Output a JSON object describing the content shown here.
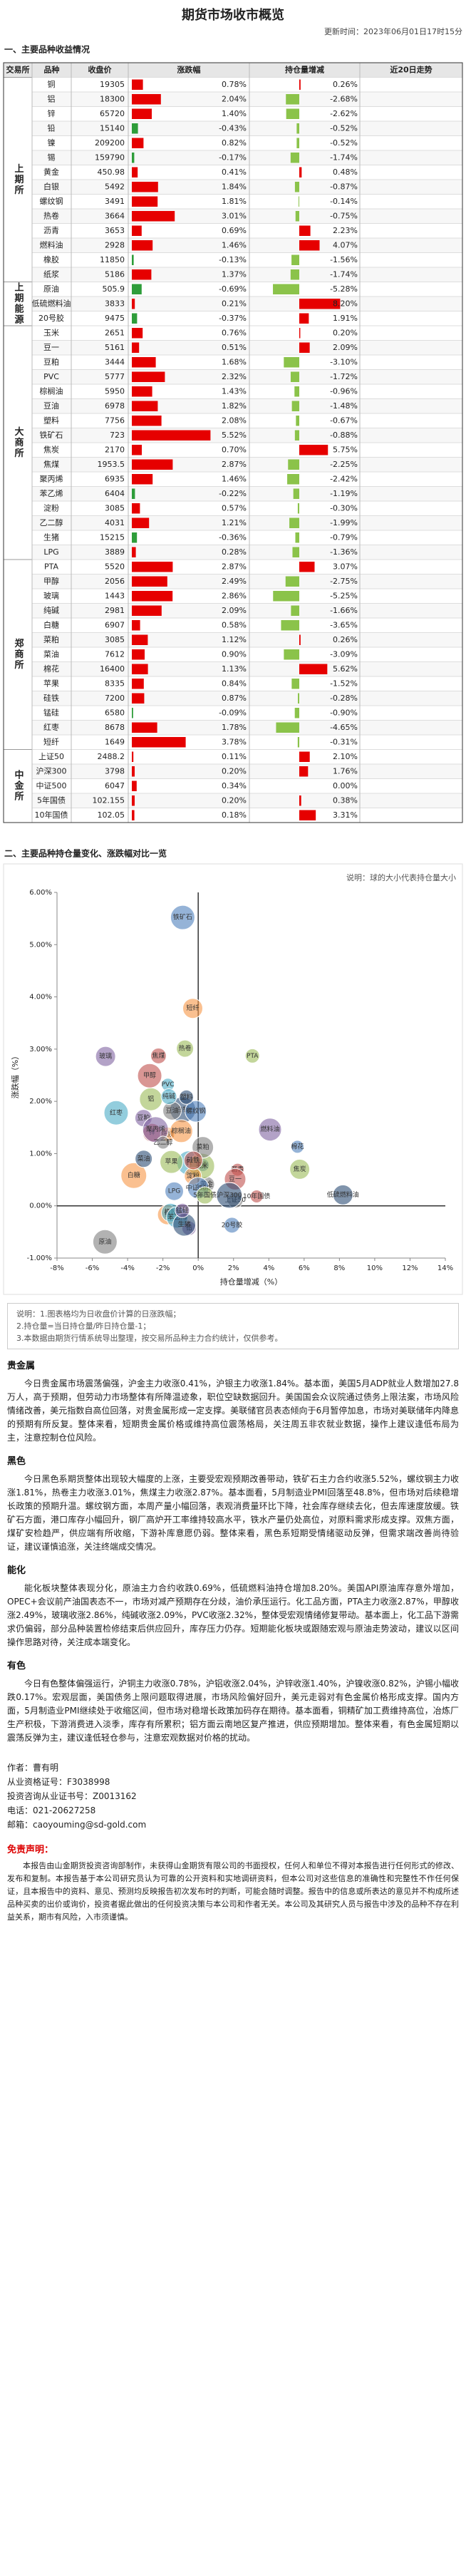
{
  "header": {
    "title": "期货市场收市概览",
    "updated": "更新时间：2023年06月01日17时15分"
  },
  "section1_title": "一、主要品种收益情况",
  "table": {
    "headers": [
      "交易所",
      "品种",
      "收盘价",
      "涨跌幅",
      "持仓量增减",
      "近20日走势"
    ],
    "groups": [
      {
        "exchange": "上期所",
        "rows": [
          [
            "铜",
            19305,
            0.78,
            "0.78%",
            0.26,
            "0.26%"
          ],
          [
            "铝",
            18300,
            2.04,
            "2.04%",
            -2.68,
            "-2.68%"
          ],
          [
            "锌",
            65720,
            1.4,
            "1.40%",
            -2.62,
            "-2.62%"
          ],
          [
            "铅",
            15140,
            -0.43,
            "-0.43%",
            -0.52,
            "-0.52%"
          ],
          [
            "镍",
            209200,
            0.82,
            "0.82%",
            -0.52,
            "-0.52%"
          ],
          [
            "锡",
            159790,
            -0.17,
            "-0.17%",
            -1.74,
            "-1.74%"
          ],
          [
            "黄金",
            450.98,
            0.41,
            "0.41%",
            0.48,
            "0.48%"
          ],
          [
            "白银",
            5492,
            1.84,
            "1.84%",
            -0.87,
            "-0.87%"
          ],
          [
            "螺纹钢",
            3491,
            1.81,
            "1.81%",
            -0.14,
            "-0.14%"
          ],
          [
            "热卷",
            3664,
            3.01,
            "3.01%",
            -0.75,
            "-0.75%"
          ],
          [
            "沥青",
            3653,
            0.69,
            "0.69%",
            2.23,
            "2.23%"
          ],
          [
            "燃料油",
            2928,
            1.46,
            "1.46%",
            4.07,
            "4.07%"
          ],
          [
            "橡胶",
            11850,
            -0.13,
            "-0.13%",
            -1.56,
            "-1.56%"
          ],
          [
            "纸浆",
            5186,
            1.37,
            "1.37%",
            -1.74,
            "-1.74%"
          ]
        ]
      },
      {
        "exchange": "上期能源",
        "rows": [
          [
            "原油",
            505.9,
            -0.69,
            "-0.69%",
            -5.28,
            "-5.28%"
          ],
          [
            "低硫燃料油",
            3833,
            0.21,
            "0.21%",
            8.2,
            "8.20%"
          ],
          [
            "20号胶",
            9475,
            -0.37,
            "-0.37%",
            1.91,
            "1.91%"
          ]
        ]
      },
      {
        "exchange": "大商所",
        "rows": [
          [
            "玉米",
            2651,
            0.76,
            "0.76%",
            0.2,
            "0.20%"
          ],
          [
            "豆一",
            5161,
            0.51,
            "0.51%",
            2.09,
            "2.09%"
          ],
          [
            "豆粕",
            3444,
            1.68,
            "1.68%",
            -3.1,
            "-3.10%"
          ],
          [
            "PVC",
            5777,
            2.32,
            "2.32%",
            -1.72,
            "-1.72%"
          ],
          [
            "棕榈油",
            5950,
            1.43,
            "1.43%",
            -0.96,
            "-0.96%"
          ],
          [
            "豆油",
            6978,
            1.82,
            "1.82%",
            -1.48,
            "-1.48%"
          ],
          [
            "塑料",
            7756,
            2.08,
            "2.08%",
            -0.67,
            "-0.67%"
          ],
          [
            "铁矿石",
            723,
            5.52,
            "5.52%",
            -0.88,
            "-0.88%"
          ],
          [
            "焦炭",
            2170,
            0.7,
            "0.70%",
            5.75,
            "5.75%"
          ],
          [
            "焦煤",
            1953.5,
            2.87,
            "2.87%",
            -2.25,
            "-2.25%"
          ],
          [
            "聚丙烯",
            6935,
            1.46,
            "1.46%",
            -2.42,
            "-2.42%"
          ],
          [
            "苯乙烯",
            6404,
            -0.22,
            "-0.22%",
            -1.19,
            "-1.19%"
          ],
          [
            "淀粉",
            3085,
            0.57,
            "0.57%",
            -0.3,
            "-0.30%"
          ],
          [
            "乙二醇",
            4031,
            1.21,
            "1.21%",
            -1.99,
            "-1.99%"
          ],
          [
            "生猪",
            15215,
            -0.36,
            "-0.36%",
            -0.79,
            "-0.79%"
          ],
          [
            "LPG",
            3889,
            0.28,
            "0.28%",
            -1.36,
            "-1.36%"
          ]
        ]
      },
      {
        "exchange": "郑商所",
        "rows": [
          [
            "PTA",
            5520,
            2.87,
            "2.87%",
            3.07,
            "3.07%"
          ],
          [
            "甲醇",
            2056,
            2.49,
            "2.49%",
            -2.75,
            "-2.75%"
          ],
          [
            "玻璃",
            1443,
            2.86,
            "2.86%",
            -5.25,
            "-5.25%"
          ],
          [
            "纯碱",
            2981,
            2.09,
            "2.09%",
            -1.66,
            "-1.66%"
          ],
          [
            "白糖",
            6907,
            0.58,
            "0.58%",
            -3.65,
            "-3.65%"
          ],
          [
            "菜粕",
            3085,
            1.12,
            "1.12%",
            0.26,
            "0.26%"
          ],
          [
            "菜油",
            7612,
            0.9,
            "0.90%",
            -3.09,
            "-3.09%"
          ],
          [
            "棉花",
            16400,
            1.13,
            "1.13%",
            5.62,
            "5.62%"
          ],
          [
            "苹果",
            8335,
            0.84,
            "0.84%",
            -1.52,
            "-1.52%"
          ],
          [
            "硅铁",
            7200,
            0.87,
            "0.87%",
            -0.28,
            "-0.28%"
          ],
          [
            "锰硅",
            6580,
            -0.09,
            "-0.09%",
            -0.9,
            "-0.90%"
          ],
          [
            "红枣",
            8678,
            1.78,
            "1.78%",
            -4.65,
            "-4.65%"
          ],
          [
            "短纤",
            1649,
            3.78,
            "3.78%",
            -0.31,
            "-0.31%"
          ]
        ]
      },
      {
        "exchange": "中金所",
        "rows": [
          [
            "上证50",
            2488.2,
            0.11,
            "0.11%",
            2.1,
            "2.10%"
          ],
          [
            "沪深300",
            3798,
            0.2,
            "0.20%",
            1.76,
            "1.76%"
          ],
          [
            "中证500",
            6047,
            0.34,
            "0.34%",
            0,
            "0.00%"
          ],
          [
            "5年国债",
            102.155,
            0.2,
            "0.20%",
            0.38,
            "0.38%"
          ],
          [
            "10年国债",
            102.05,
            0.18,
            "0.18%",
            3.31,
            "3.31%"
          ]
        ]
      }
    ]
  },
  "chart_data": {
    "type": "scatter",
    "title": "二、主要品种持仓量变化、涨跌幅对比一览",
    "note": "说明：球的大小代表持仓量大小",
    "x_label": "持仓量增减（%）",
    "y_label": "涨跌幅（%）",
    "xlim": [
      -8,
      14
    ],
    "xticks": [
      {
        "value": -8,
        "label": "-8%"
      },
      {
        "value": -6,
        "label": "-6%"
      },
      {
        "value": -4,
        "label": "-4%"
      },
      {
        "value": -2,
        "label": "-2%"
      },
      {
        "value": 0,
        "label": "0%"
      },
      {
        "value": 2,
        "label": "2%"
      },
      {
        "value": 4,
        "label": "4%"
      },
      {
        "value": 6,
        "label": "6%"
      },
      {
        "value": 8,
        "label": "8%"
      },
      {
        "value": 10,
        "label": "10%"
      },
      {
        "value": 12,
        "label": "12%"
      },
      {
        "value": 14,
        "label": "14%"
      }
    ],
    "ylim": [
      -1,
      6
    ],
    "yticks": [
      {
        "value": -1,
        "label": "-1.00%"
      },
      {
        "value": 0,
        "label": "0.00%"
      },
      {
        "value": 1,
        "label": "1.00%"
      },
      {
        "value": 2,
        "label": "2.00%"
      },
      {
        "value": 3,
        "label": "3.00%"
      },
      {
        "value": 4,
        "label": "4.00%"
      },
      {
        "value": 5,
        "label": "5.00%"
      },
      {
        "value": 6,
        "label": "6.00%"
      }
    ]
  },
  "notes": [
    "说明：1.图表格均为日收盘价计算的日涨跌幅；",
    "2.持仓量=当日持仓量/昨日持仓量-1；",
    "3.本数据由期货行情系统导出整理，按交易所品种主力合约统计，仅供参考。"
  ],
  "sections": [
    {
      "title": "贵金属",
      "text": "今日贵金属市场震荡偏强，沪金主力收涨0.41%，沪银主力收涨1.84%。基本面，美国5月ADP就业人数增加27.8万人，高于预期，但劳动力市场整体有所降温迹象，职位空缺数据回升。美国国会众议院通过债务上限法案，市场风险情绪改善，美元指数自高位回落，对贵金属形成一定支撑。美联储官员表态倾向于6月暂停加息，市场对美联储年内降息的预期有所反复。整体来看，短期贵金属价格或维持高位震荡格局，关注周五非农就业数据，操作上建议逢低布局为主，注意控制仓位风险。"
    },
    {
      "title": "黑色",
      "text": "今日黑色系期货整体出现较大幅度的上涨，主要受宏观预期改善带动，铁矿石主力合约收涨5.52%，螺纹钢主力收涨1.81%，热卷主力收涨3.01%，焦煤主力收涨2.87%。基本面看，5月制造业PMI回落至48.8%，但市场对后续稳增长政策的预期升温。螺纹钢方面，本周产量小幅回落，表观消费量环比下降，社会库存继续去化，但去库速度放缓。铁矿石方面，港口库存小幅回升，钢厂高炉开工率维持较高水平，铁水产量仍处高位，对原料需求形成支撑。双焦方面，煤矿安检趋严，供应端有所收缩，下游补库意愿仍弱。整体来看，黑色系短期受情绪驱动反弹，但需求端改善尚待验证，建议谨慎追涨，关注终端成交情况。"
    },
    {
      "title": "能化",
      "text": "能化板块整体表现分化，原油主力合约收跌0.69%，低硫燃料油持仓增加8.20%。美国API原油库存意外增加，OPEC+会议前产油国表态不一，市场对减产预期存在分歧，油价承压运行。化工品方面，PTA主力收涨2.87%，甲醇收涨2.49%，玻璃收涨2.86%，纯碱收涨2.09%，PVC收涨2.32%，整体受宏观情绪修复带动。基本面上，化工品下游需求仍偏弱，部分品种装置检修结束后供应回升，库存压力仍存。短期能化板块或跟随宏观与原油走势波动，建议以区间操作思路对待，关注成本端变化。"
    },
    {
      "title": "有色",
      "text": "今日有色整体偏强运行，沪铜主力收涨0.78%，沪铝收涨2.04%，沪锌收涨1.40%，沪镍收涨0.82%，沪锡小幅收跌0.17%。宏观层面，美国债务上限问题取得进展，市场风险偏好回升，美元走弱对有色金属价格形成支撑。国内方面，5月制造业PMI继续处于收缩区间，但市场对稳增长政策加码存在期待。基本面看，铜精矿加工费维持高位，冶炼厂生产积极，下游消费进入淡季，库存有所累积；铝方面云南地区复产推进，供应预期增加。整体来看，有色金属短期以震荡反弹为主，建议逢低轻仓参与，注意宏观数据对价格的扰动。"
    }
  ],
  "author": {
    "lines": [
      "作者：曹有明",
      "从业资格证号：F3038998",
      "投资咨询从业证书号：Z0013162",
      "电话：021-20627258",
      "邮箱：caoyouming@sd-gold.com"
    ]
  },
  "disclaimer": {
    "title": "免责声明：",
    "text": "本报告由山金期货投资咨询部制作，未获得山金期货有限公司的书面授权，任何人和单位不得对本报告进行任何形式的修改、发布和复制。本报告基于本公司研究员认为可靠的公开资料和实地调研资料，但本公司对这些信息的准确性和完整性不作任何保证，且本报告中的资料、意见、预测均反映报告初次发布时的判断，可能会随时调整。报告中的信息或所表达的意见并不构成所述品种买卖的出价或询价，投资者据此做出的任何投资决策与本公司和作者无关。本公司及其研究人员与报告中涉及的品种不存在利益关系，期市有风险，入市须谨慎。"
  }
}
